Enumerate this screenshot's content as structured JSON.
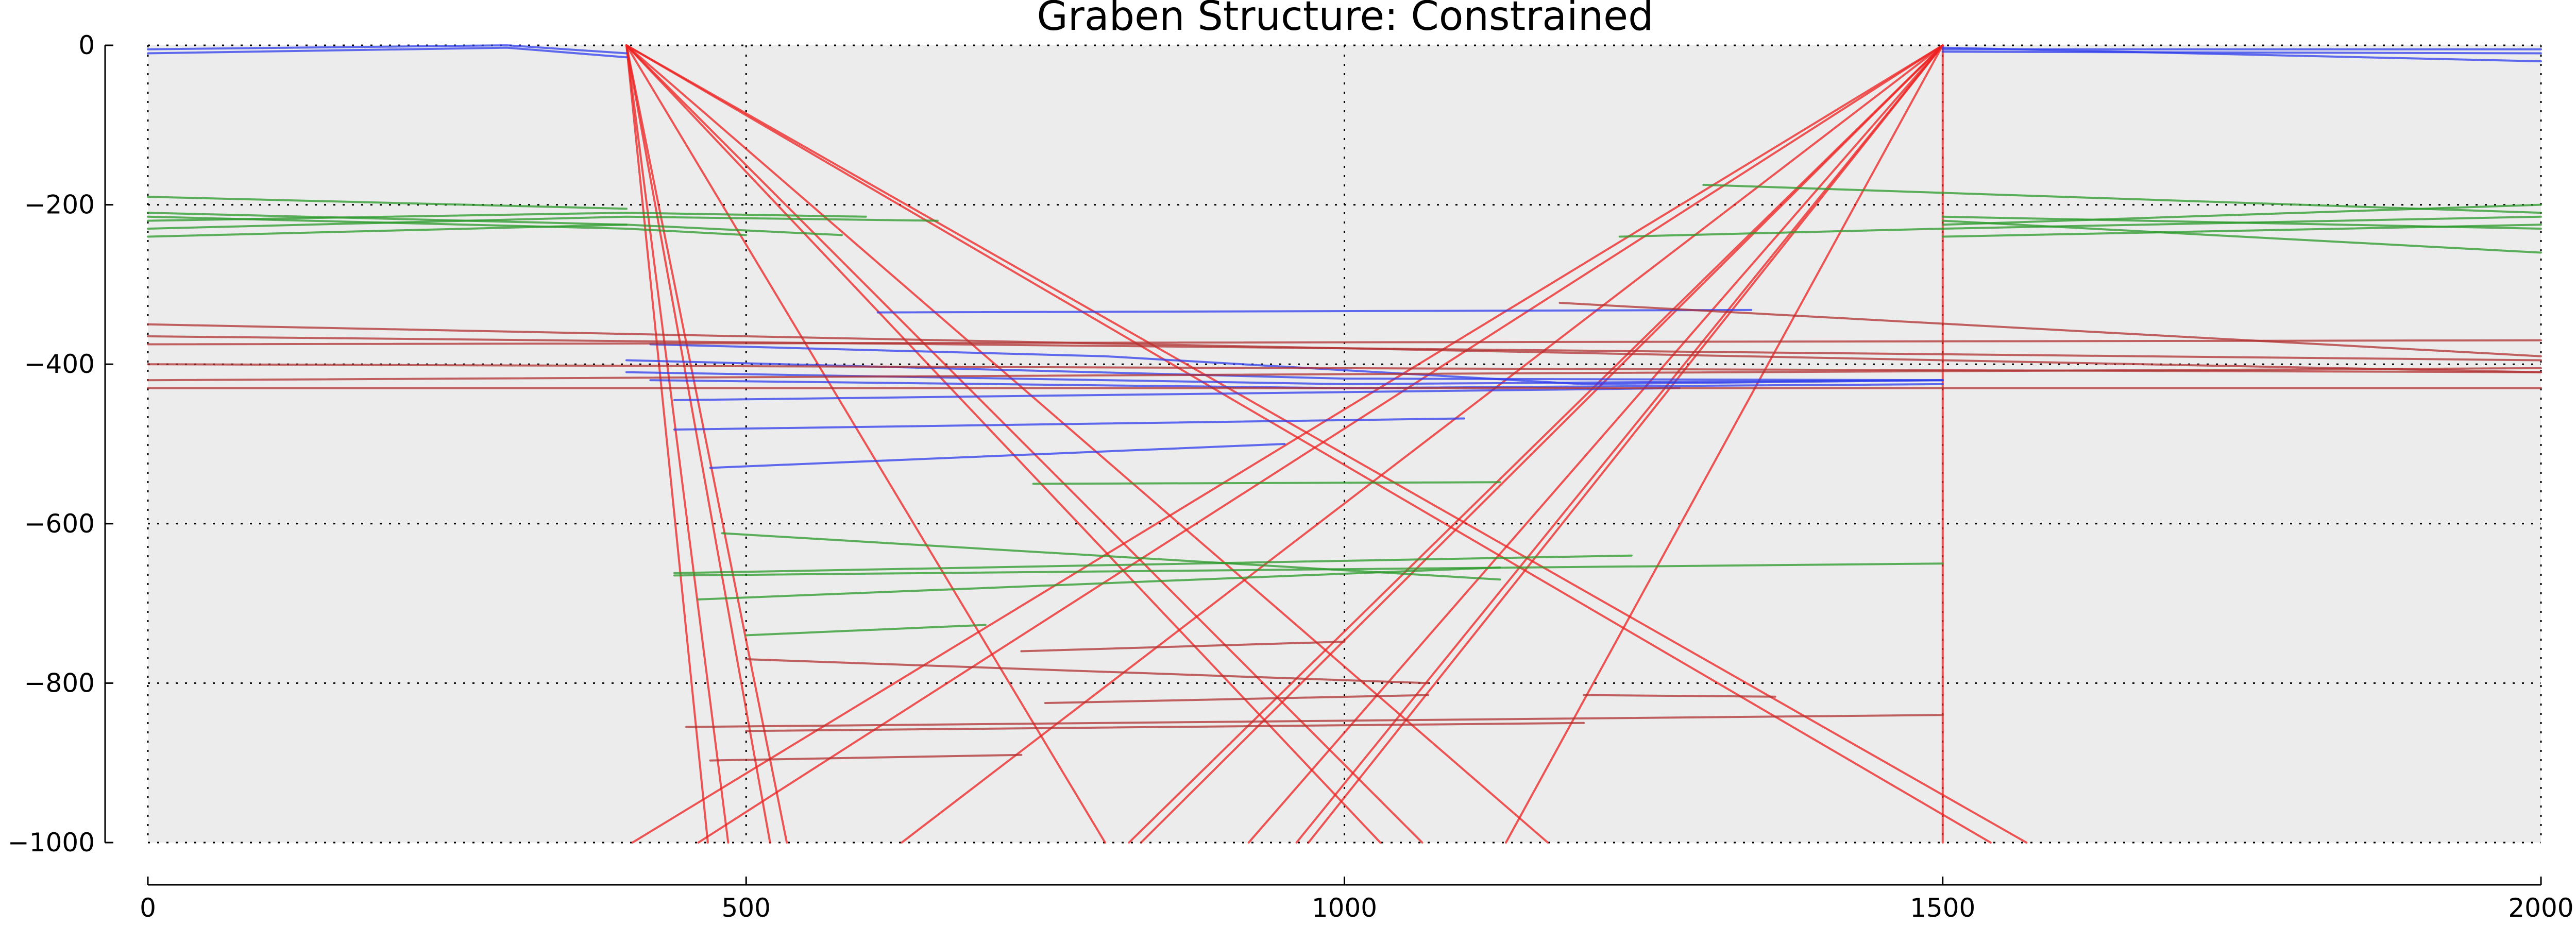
{
  "chart_data": {
    "type": "line",
    "title": "Graben Structure: Constrained",
    "xlabel": "",
    "ylabel": "",
    "xlim": [
      0,
      2000
    ],
    "ylim": [
      -1000,
      0
    ],
    "x_ticks": [
      0,
      500,
      1000,
      1500,
      2000
    ],
    "y_ticks": [
      0,
      -200,
      -400,
      -600,
      -800,
      -1000
    ],
    "grid": true,
    "background": "#ececec",
    "colors": {
      "fault": "#ee2020",
      "horizon_blue": "#2e3cec",
      "horizon_green": "#2a9a2a",
      "horizon_darkred": "#b03030"
    },
    "series": [
      {
        "group": "fault",
        "color": "#ee2020",
        "alpha": 0.75,
        "segments": [
          [
            [
              400,
              0
            ],
            [
              468,
              -1000
            ]
          ],
          [
            [
              400,
              0
            ],
            [
              485,
              -1000
            ]
          ],
          [
            [
              400,
              0
            ],
            [
              520,
              -1000
            ]
          ],
          [
            [
              400,
              0
            ],
            [
              534,
              -1000
            ]
          ],
          [
            [
              400,
              0
            ],
            [
              1030,
              -1000
            ]
          ],
          [
            [
              400,
              0
            ],
            [
              1065,
              -1000
            ]
          ],
          [
            [
              400,
              0
            ],
            [
              1540,
              -1000
            ]
          ],
          [
            [
              400,
              0
            ],
            [
              1570,
              -1000
            ]
          ],
          [
            [
              400,
              0
            ],
            [
              800,
              -1000
            ]
          ],
          [
            [
              400,
              0
            ],
            [
              1170,
              -1000
            ]
          ],
          [
            [
              1500,
              0
            ],
            [
              1500,
              -1000
            ]
          ],
          [
            [
              1500,
              0
            ],
            [
              405,
              -1000
            ]
          ],
          [
            [
              1500,
              0
            ],
            [
              630,
              -1000
            ]
          ],
          [
            [
              1500,
              0
            ],
            [
              820,
              -1000
            ]
          ],
          [
            [
              1500,
              0
            ],
            [
              920,
              -1000
            ]
          ],
          [
            [
              1500,
              0
            ],
            [
              960,
              -1000
            ]
          ],
          [
            [
              1500,
              0
            ],
            [
              970,
              -1000
            ]
          ],
          [
            [
              1500,
              0
            ],
            [
              1135,
              -1000
            ]
          ],
          [
            [
              1500,
              0
            ],
            [
              460,
              -1000
            ]
          ],
          [
            [
              1500,
              0
            ],
            [
              830,
              -1000
            ]
          ]
        ]
      },
      {
        "group": "horizon_blue",
        "color": "#2e3cec",
        "alpha": 0.75,
        "segments": [
          [
            [
              0,
              -5
            ],
            [
              300,
              0
            ],
            [
              400,
              -10
            ]
          ],
          [
            [
              0,
              -10
            ],
            [
              300,
              -3
            ],
            [
              400,
              -15
            ]
          ],
          [
            [
              1500,
              -5
            ],
            [
              2000,
              -5
            ]
          ],
          [
            [
              1500,
              -3
            ],
            [
              2000,
              -20
            ]
          ],
          [
            [
              1500,
              -8
            ],
            [
              2000,
              -10
            ]
          ],
          [
            [
              610,
              -335
            ],
            [
              1340,
              -332
            ]
          ],
          [
            [
              420,
              -375
            ],
            [
              800,
              -390
            ],
            [
              1200,
              -425
            ],
            [
              1500,
              -420
            ]
          ],
          [
            [
              400,
              -410
            ],
            [
              1000,
              -425
            ],
            [
              1500,
              -420
            ]
          ],
          [
            [
              420,
              -420
            ],
            [
              1000,
              -430
            ],
            [
              1500,
              -425
            ]
          ],
          [
            [
              440,
              -445
            ],
            [
              1280,
              -430
            ]
          ],
          [
            [
              440,
              -482
            ],
            [
              1100,
              -468
            ]
          ],
          [
            [
              470,
              -530
            ],
            [
              950,
              -500
            ]
          ],
          [
            [
              400,
              -395
            ],
            [
              1000,
              -418
            ],
            [
              1500,
              -420
            ]
          ]
        ]
      },
      {
        "group": "horizon_green",
        "color": "#2a9a2a",
        "alpha": 0.75,
        "segments": [
          [
            [
              0,
              -190
            ],
            [
              400,
              -205
            ]
          ],
          [
            [
              0,
              -215
            ],
            [
              400,
              -230
            ],
            [
              500,
              -238
            ]
          ],
          [
            [
              0,
              -220
            ],
            [
              400,
              -210
            ],
            [
              600,
              -215
            ]
          ],
          [
            [
              0,
              -230
            ],
            [
              400,
              -215
            ],
            [
              660,
              -220
            ]
          ],
          [
            [
              0,
              -240
            ],
            [
              400,
              -225
            ]
          ],
          [
            [
              0,
              -210
            ],
            [
              400,
              -225
            ],
            [
              580,
              -238
            ]
          ],
          [
            [
              1500,
              -225
            ],
            [
              2000,
              -200
            ]
          ],
          [
            [
              1500,
              -230
            ],
            [
              2000,
              -215
            ]
          ],
          [
            [
              1500,
              -220
            ],
            [
              2000,
              -260
            ]
          ],
          [
            [
              1500,
              -215
            ],
            [
              2000,
              -230
            ]
          ],
          [
            [
              1500,
              -240
            ],
            [
              2000,
              -225
            ]
          ],
          [
            [
              1300,
              -175
            ],
            [
              2000,
              -210
            ]
          ],
          [
            [
              1230,
              -240
            ],
            [
              1500,
              -230
            ]
          ],
          [
            [
              740,
              -550
            ],
            [
              1130,
              -548
            ]
          ],
          [
            [
              480,
              -612
            ],
            [
              1130,
              -670
            ]
          ],
          [
            [
              440,
              -662
            ],
            [
              1240,
              -640
            ]
          ],
          [
            [
              460,
              -695
            ],
            [
              1130,
              -655
            ]
          ],
          [
            [
              500,
              -740
            ],
            [
              700,
              -727
            ]
          ],
          [
            [
              440,
              -665
            ],
            [
              1500,
              -650
            ]
          ]
        ]
      },
      {
        "group": "horizon_darkred",
        "color": "#b03030",
        "alpha": 0.75,
        "segments": [
          [
            [
              0,
              -350
            ],
            [
              2000,
              -410
            ]
          ],
          [
            [
              0,
              -365
            ],
            [
              2000,
              -395
            ]
          ],
          [
            [
              0,
              -375
            ],
            [
              2000,
              -370
            ]
          ],
          [
            [
              0,
              -400
            ],
            [
              2000,
              -410
            ]
          ],
          [
            [
              0,
              -420
            ],
            [
              2000,
              -405
            ]
          ],
          [
            [
              0,
              -430
            ],
            [
              2000,
              -430
            ]
          ],
          [
            [
              1180,
              -323
            ],
            [
              2000,
              -390
            ]
          ],
          [
            [
              500,
              -770
            ],
            [
              1070,
              -800
            ]
          ],
          [
            [
              450,
              -855
            ],
            [
              1500,
              -840
            ]
          ],
          [
            [
              470,
              -897
            ],
            [
              730,
              -890
            ]
          ],
          [
            [
              730,
              -760
            ],
            [
              1000,
              -748
            ]
          ],
          [
            [
              750,
              -825
            ],
            [
              1070,
              -815
            ]
          ],
          [
            [
              1200,
              -815
            ],
            [
              1360,
              -817
            ]
          ],
          [
            [
              500,
              -860
            ],
            [
              1200,
              -850
            ]
          ]
        ]
      }
    ]
  }
}
